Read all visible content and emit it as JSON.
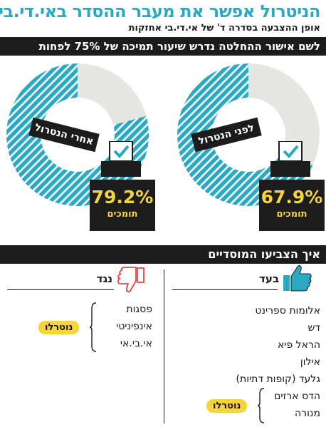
{
  "header": {
    "title": "הניטרול אפשר את מעבר ההסדר באי.די.בי",
    "subtitle": "אופן ההצבעה בסדרה ד' של אי.די.בי אחזקות"
  },
  "section1": {
    "banner": "לשם אישור ההחלטה נדרש שיעור תמיכה של 75% לפחות",
    "charts": [
      {
        "label": "לפני הנטרול",
        "percent": "67.9%",
        "caption": "תומכים",
        "support_fraction": 0.679
      },
      {
        "label": "אחרי הנטרול",
        "percent": "79.2%",
        "caption": "תומכים",
        "support_fraction": 0.792
      }
    ]
  },
  "section2": {
    "banner": "איך הצביעו המוסדיים",
    "for": {
      "heading": "בעד",
      "items": [
        "אלומות ספרינט",
        "דש",
        "הראל פיא",
        "אילון",
        "גלעד (קופות דתיות)",
        "הדס ארזים",
        "מנורה"
      ],
      "neutralized_label": "נוטרלו"
    },
    "against": {
      "heading": "נגד",
      "items": [
        "פסגות",
        "אינפיניטי",
        "אי.בי.אי"
      ],
      "neutralized_label": "נוטרלו"
    }
  },
  "colors": {
    "accent": "#2aa9c2",
    "dark": "#1c1c1c",
    "yellow": "#f6d43c",
    "ring_rest": "#e6e6e3",
    "thumb_down": "#e2332a"
  }
}
